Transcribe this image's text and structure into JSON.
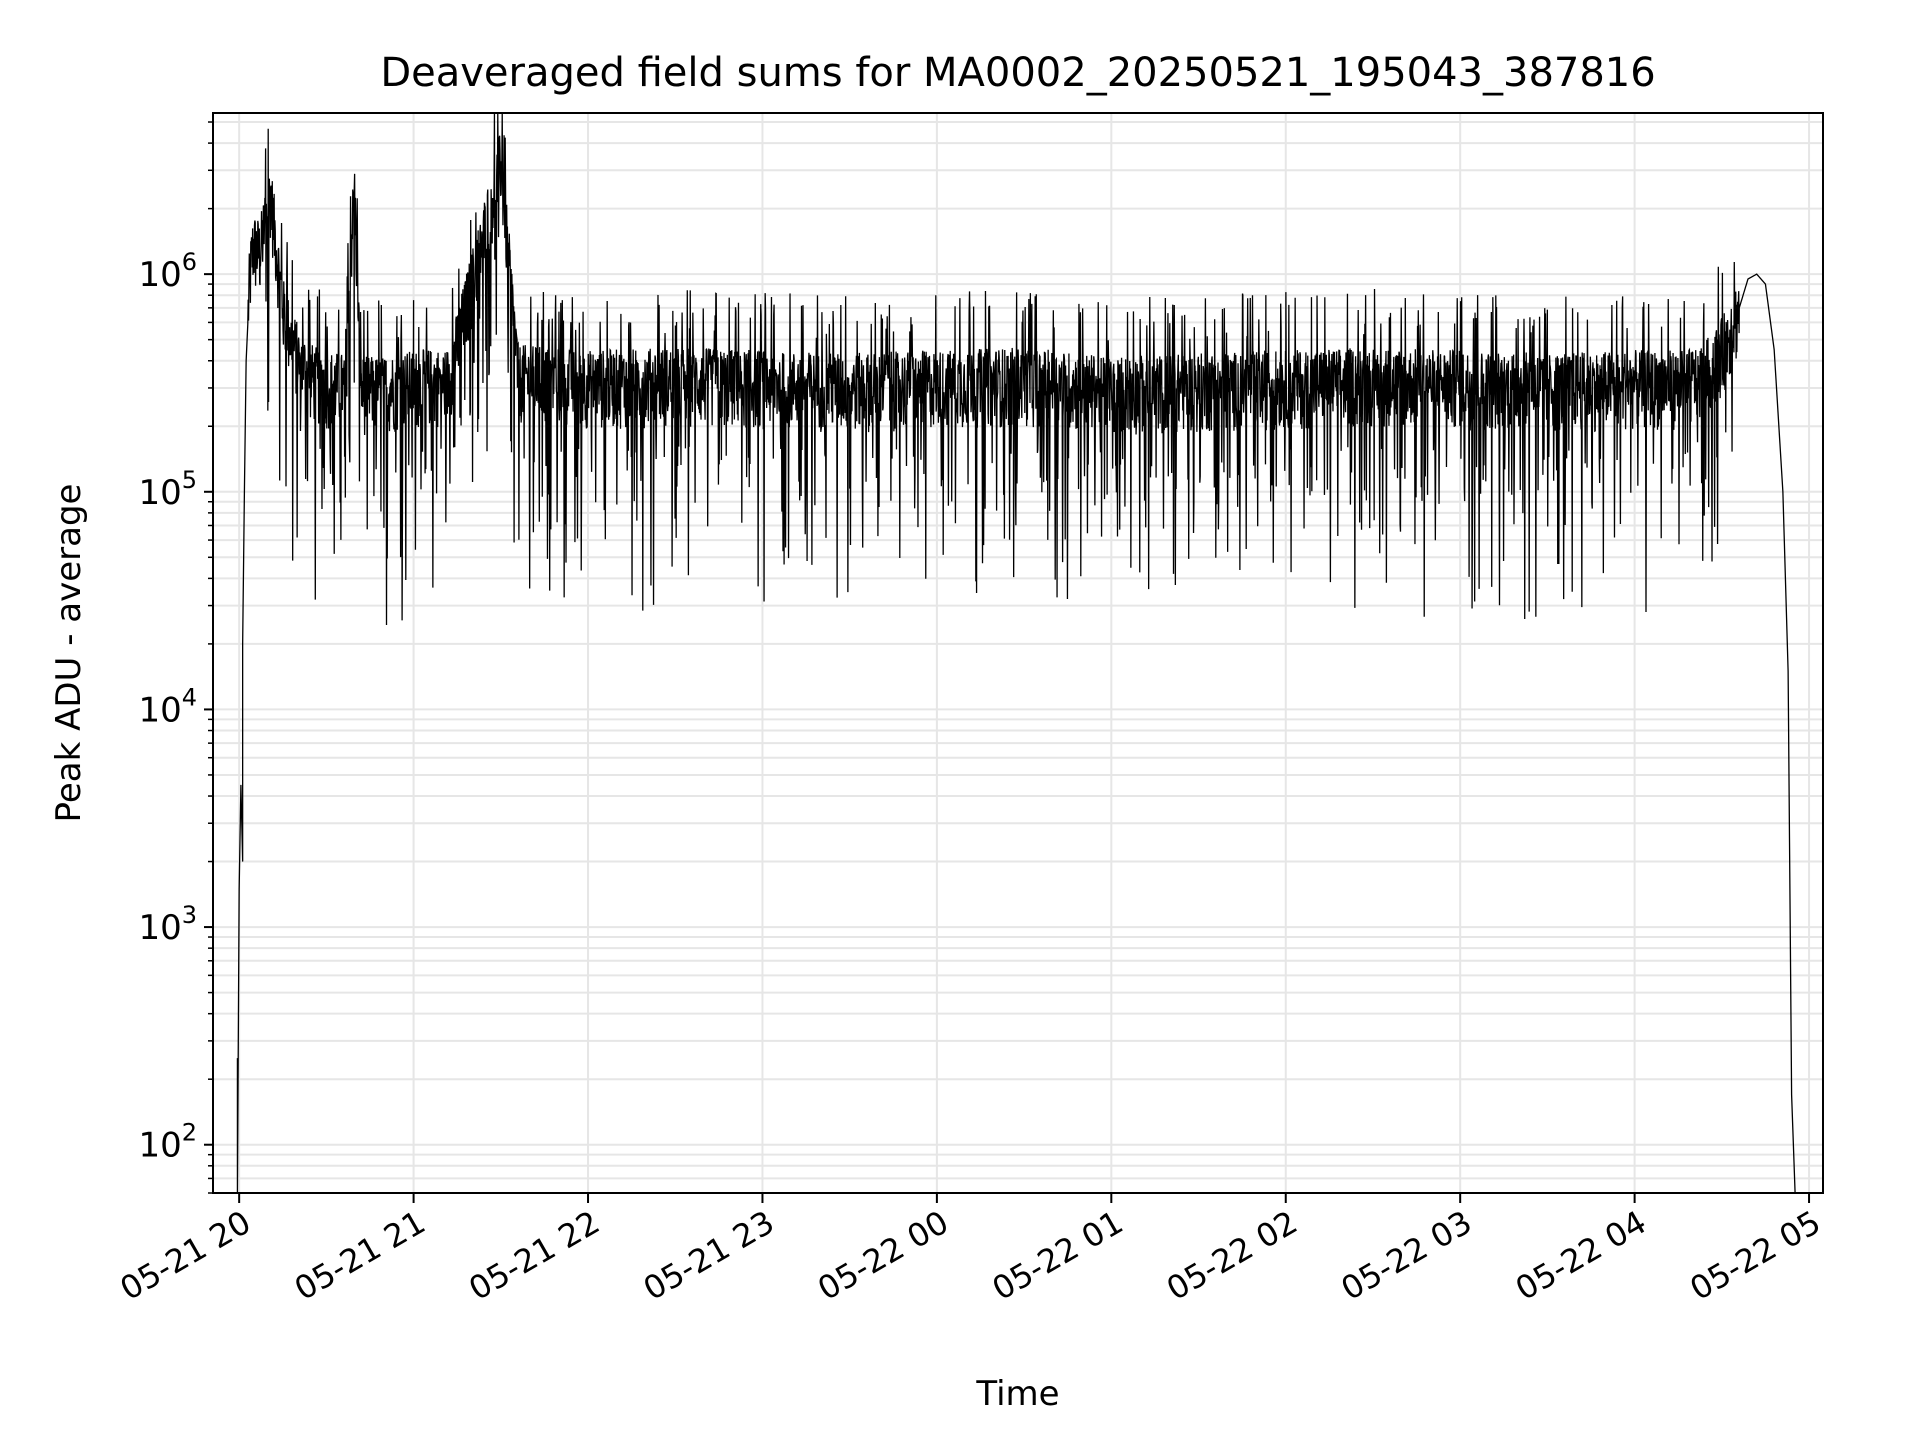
{
  "chart_data": {
    "type": "line",
    "title": "Deaveraged field sums for MA0002_20250521_195043_387816",
    "xlabel": "Time",
    "ylabel": "Peak ADU - average",
    "x_ticks": [
      "05-21 20",
      "05-21 21",
      "05-21 22",
      "05-21 23",
      "05-22 00",
      "05-22 01",
      "05-22 02",
      "05-22 03",
      "05-22 04",
      "05-22 05"
    ],
    "x_tick_hours": [
      0,
      1,
      2,
      3,
      4,
      5,
      6,
      7,
      8,
      9
    ],
    "xlim_hours": [
      -0.15,
      9.08
    ],
    "y_scale": "log",
    "ylim": [
      60,
      5500000
    ],
    "y_ticks": [
      {
        "value": 100,
        "base": "10",
        "exp": "2"
      },
      {
        "value": 1000,
        "base": "10",
        "exp": "3"
      },
      {
        "value": 10000,
        "base": "10",
        "exp": "4"
      },
      {
        "value": 100000,
        "base": "10",
        "exp": "5"
      },
      {
        "value": 1000000,
        "base": "10",
        "exp": "6"
      }
    ],
    "grid": true,
    "line_color": "#000000",
    "grid_color": "#e6e6e6",
    "series": [
      {
        "x": [
          -0.01,
          -0.01,
          0.0,
          0.01,
          0.02,
          0.02,
          0.03,
          0.04,
          0.06,
          0.08,
          0.12,
          0.18,
          0.25,
          0.3,
          0.35,
          0.4,
          0.45,
          0.5,
          0.6,
          0.66,
          0.7,
          0.8,
          0.9,
          1.0,
          1.2,
          1.5,
          1.6,
          1.8,
          2.0,
          2.5,
          3.0,
          3.5,
          4.0,
          4.5,
          5.0,
          5.5,
          6.0,
          6.5,
          7.0,
          7.5,
          8.0,
          8.3,
          8.4,
          8.5,
          8.6,
          8.65,
          8.7,
          8.75,
          8.8,
          8.85,
          8.88,
          8.9,
          8.92
        ],
        "y": [
          250,
          60,
          1500,
          4500,
          2000,
          20000,
          100000,
          400000,
          900000,
          1300000,
          1200000,
          2400000,
          700000,
          500000,
          400000,
          350000,
          330000,
          320000,
          310000,
          2500000,
          300000,
          300000,
          310000,
          320000,
          330000,
          3300000,
          340000,
          330000,
          320000,
          330000,
          320000,
          310000,
          320000,
          330000,
          300000,
          310000,
          320000,
          330000,
          320000,
          310000,
          320000,
          320000,
          350000,
          450000,
          700000,
          950000,
          1000000,
          900000,
          450000,
          100000,
          15000,
          170,
          60
        ]
      }
    ]
  }
}
